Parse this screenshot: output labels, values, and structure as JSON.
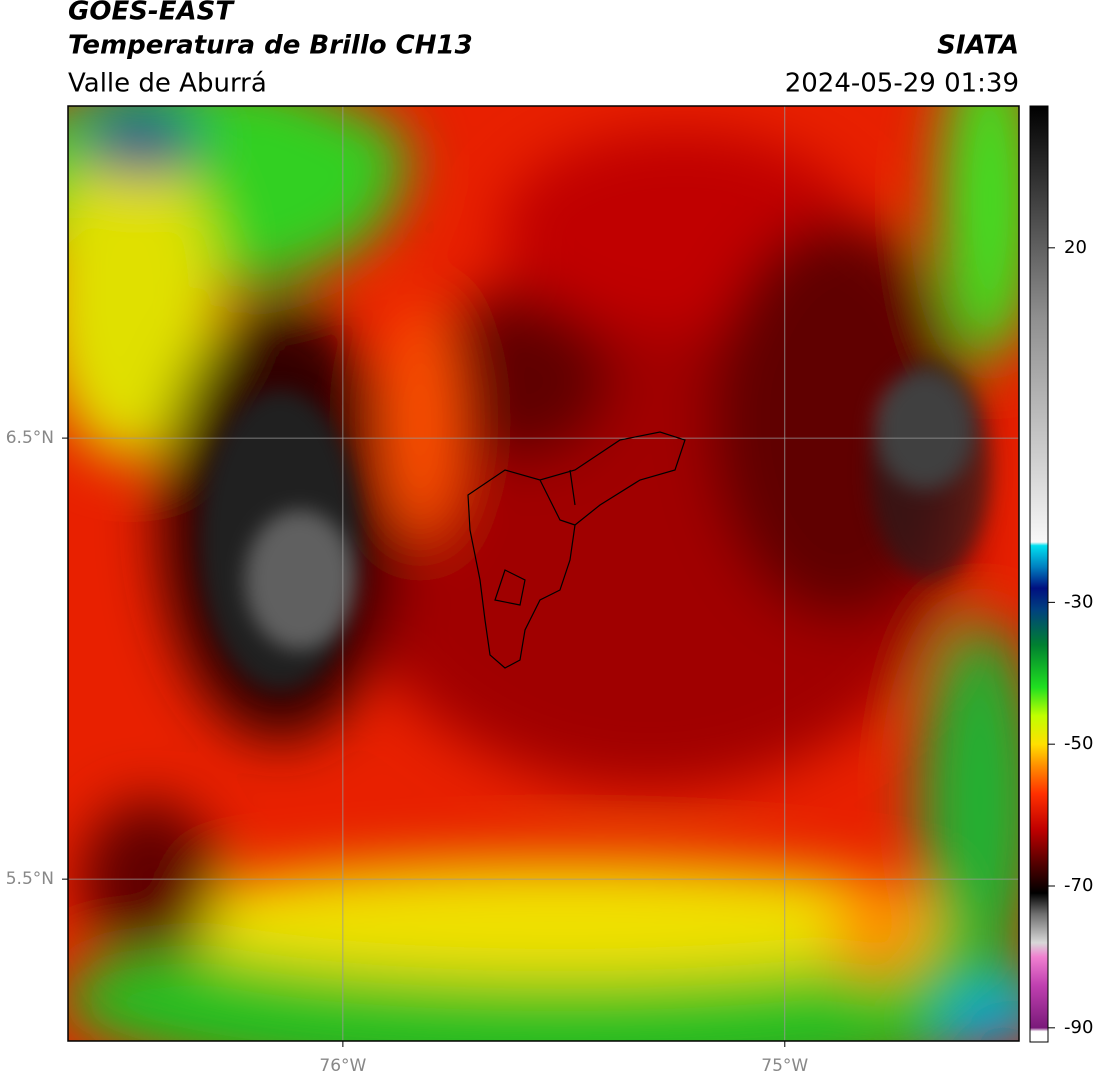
{
  "header": {
    "title": "GOES-EAST",
    "subtitle": "Temperatura de Brillo CH13",
    "region": "Valle de Aburrá",
    "source": "SIATA",
    "datetime": "2024-05-29 01:39"
  },
  "map": {
    "lonlim": [
      -76.622,
      -74.47
    ],
    "latlim": [
      5.133,
      7.253
    ],
    "lonticks": [
      {
        "value": -76,
        "label": "76°W"
      },
      {
        "value": -75,
        "label": "75°W"
      }
    ],
    "latticks": [
      {
        "value": 6.5,
        "label": "6.5°N"
      },
      {
        "value": 5.5,
        "label": "5.5°N"
      }
    ],
    "grid": true
  },
  "colorbar": {
    "lim": [
      -92,
      40
    ],
    "ticks": [
      -90,
      -70,
      -50,
      -30,
      20
    ],
    "stops": [
      {
        "value": -92,
        "color": "#ffffff"
      },
      {
        "value": -90.5,
        "color": "#ffffff"
      },
      {
        "value": -90,
        "color": "#7a1a7a"
      },
      {
        "value": -84,
        "color": "#c040b0"
      },
      {
        "value": -80,
        "color": "#f080d0"
      },
      {
        "value": -78,
        "color": "#d8d8d8"
      },
      {
        "value": -74,
        "color": "#707070"
      },
      {
        "value": -71,
        "color": "#000000"
      },
      {
        "value": -67,
        "color": "#500000"
      },
      {
        "value": -62,
        "color": "#c00000"
      },
      {
        "value": -57,
        "color": "#ff3000"
      },
      {
        "value": -53,
        "color": "#ff9000"
      },
      {
        "value": -50,
        "color": "#ffe000"
      },
      {
        "value": -46,
        "color": "#c0ff00"
      },
      {
        "value": -42,
        "color": "#20e020"
      },
      {
        "value": -36,
        "color": "#008030"
      },
      {
        "value": -31,
        "color": "#004080"
      },
      {
        "value": -28,
        "color": "#001080"
      },
      {
        "value": -25,
        "color": "#0080c0"
      },
      {
        "value": -22,
        "color": "#00e0f0"
      },
      {
        "value": -21.5,
        "color": "#f8f8f8"
      },
      {
        "value": -10,
        "color": "#d0d0d0"
      },
      {
        "value": 10,
        "color": "#909090"
      },
      {
        "value": 30,
        "color": "#303030"
      },
      {
        "value": 40,
        "color": "#000000"
      }
    ]
  }
}
